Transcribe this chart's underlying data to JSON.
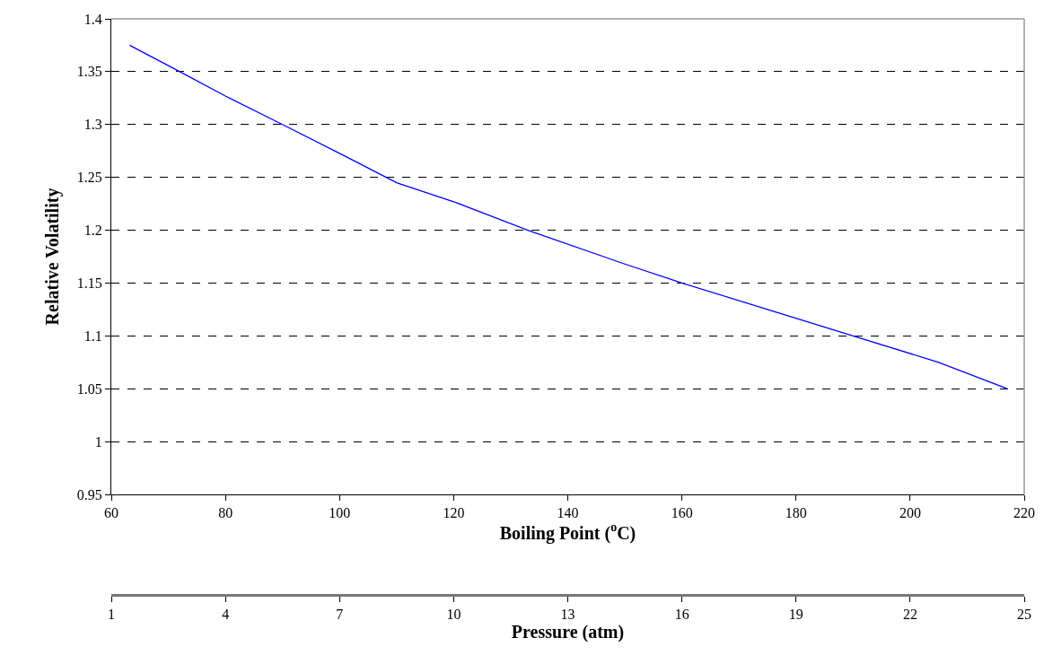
{
  "chart_data": {
    "type": "line",
    "xlabel": "Boiling Point ($^{o}$C)",
    "ylabel": "Relative Volatility",
    "x2label": "Pressure (atm)",
    "series": [
      {
        "color": "#0000ff",
        "x": [
          63.2,
          72,
          80,
          90,
          101,
          110,
          120,
          133,
          150,
          160,
          175,
          190,
          205,
          217
        ],
        "values": [
          1.375,
          1.35,
          1.327,
          1.3,
          1.27,
          1.245,
          1.227,
          1.2,
          1.168,
          1.15,
          1.125,
          1.1,
          1.075,
          1.05
        ]
      }
    ],
    "xlim": [
      60,
      220
    ],
    "xticks": [
      60,
      80,
      100,
      120,
      140,
      160,
      180,
      200,
      220
    ],
    "ylim": [
      0.95,
      1.4
    ],
    "yticks": [
      0.95,
      1,
      1.05,
      1.1,
      1.15,
      1.2,
      1.25,
      1.3,
      1.35,
      1.4
    ],
    "x2lim": [
      1,
      25
    ],
    "x2ticks": [
      1,
      4,
      7,
      10,
      13,
      16,
      19,
      22,
      25
    ],
    "grid": "y",
    "marker": "none",
    "line_style": "solid"
  }
}
